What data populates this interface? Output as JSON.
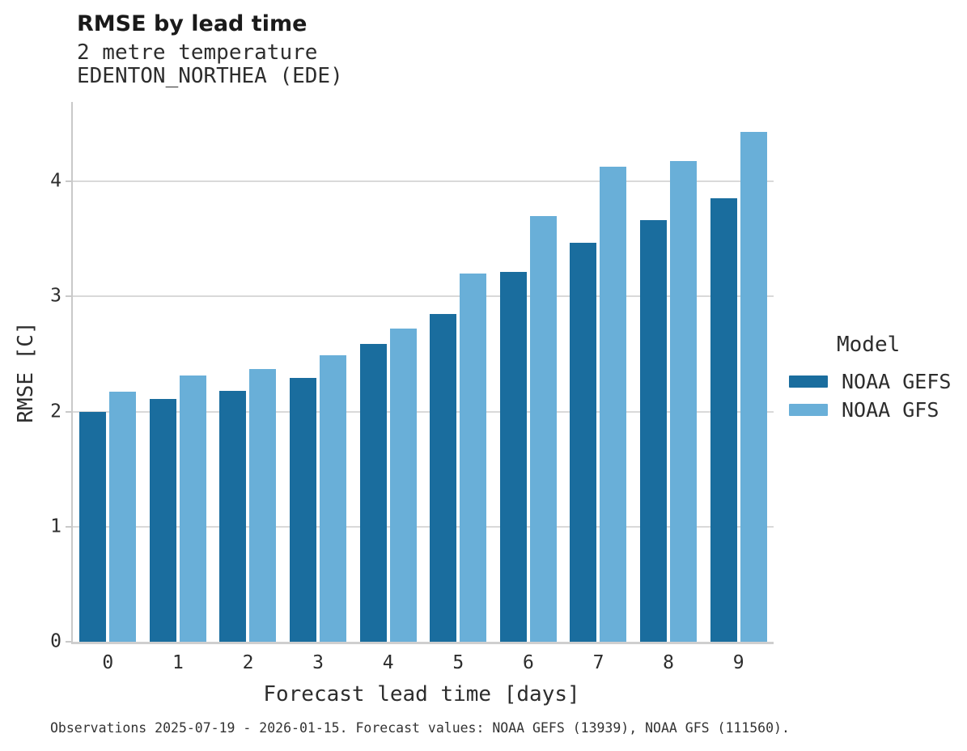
{
  "header": {
    "title": "RMSE by lead time",
    "subtitle_variable": "2 metre temperature",
    "subtitle_station": "EDENTON_NORTHEA (EDE)"
  },
  "footer": {
    "caption": "Observations 2025-07-19 - 2026-01-15. Forecast values: NOAA GEFS (13939), NOAA GFS (111560)."
  },
  "chart_data": {
    "type": "bar",
    "title": "RMSE by lead time",
    "subtitle": "2 metre temperature",
    "station": "EDENTON_NORTHEA (EDE)",
    "xlabel": "Forecast lead time [days]",
    "ylabel": "RMSE [C]",
    "legend_title": "Model",
    "legend_position": "right",
    "grid": "horizontal",
    "categories": [
      "0",
      "1",
      "2",
      "3",
      "4",
      "5",
      "6",
      "7",
      "8",
      "9"
    ],
    "series": [
      {
        "name": "NOAA GEFS",
        "color": "#1a6d9e",
        "values": [
          2.0,
          2.11,
          2.18,
          2.29,
          2.59,
          2.85,
          3.21,
          3.47,
          3.66,
          3.85
        ]
      },
      {
        "name": "NOAA GFS",
        "color": "#69afd8",
        "values": [
          2.17,
          2.31,
          2.37,
          2.49,
          2.72,
          3.2,
          3.7,
          4.13,
          4.18,
          4.43
        ]
      }
    ],
    "ylim": [
      0,
      4.69
    ],
    "yticks": [
      0,
      1,
      2,
      3,
      4
    ],
    "colors": {
      "gridline": "#d9d9d9",
      "axis_spine": "#c9c9c9",
      "text": "#2d2d2d"
    }
  }
}
